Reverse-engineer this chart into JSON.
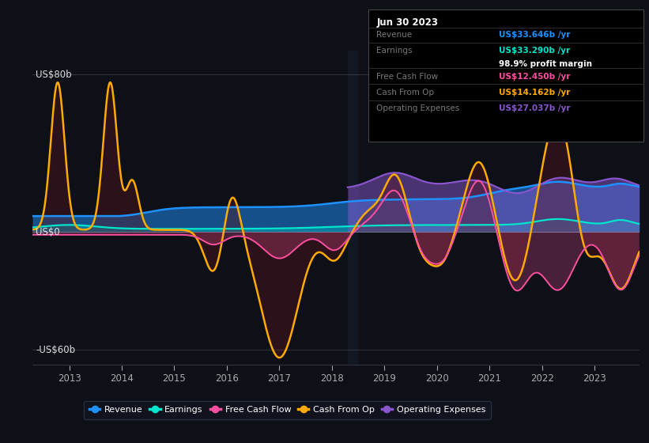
{
  "background_color": "#0d1117",
  "chart_bg": "#0d1117",
  "ylabel_top": "US$80b",
  "ylabel_mid": "US$0",
  "ylabel_bot": "-US$60b",
  "ylim": [
    -68,
    92
  ],
  "xlim": [
    2012.3,
    2023.85
  ],
  "xticks": [
    2013,
    2014,
    2015,
    2016,
    2017,
    2018,
    2019,
    2020,
    2021,
    2022,
    2023
  ],
  "colors": {
    "revenue": "#1e90ff",
    "earnings": "#00e5cc",
    "free_cash_flow": "#ff4fa0",
    "cash_from_op": "#ffaa00",
    "operating_expenses": "#8855cc"
  },
  "legend": [
    {
      "label": "Revenue",
      "color": "#1e90ff"
    },
    {
      "label": "Earnings",
      "color": "#00e5cc"
    },
    {
      "label": "Free Cash Flow",
      "color": "#ff4fa0"
    },
    {
      "label": "Cash From Op",
      "color": "#ffaa00"
    },
    {
      "label": "Operating Expenses",
      "color": "#8855cc"
    }
  ],
  "info_box": {
    "date": "Jun 30 2023",
    "revenue": "US$33.646b /yr",
    "earnings": "US$33.290b /yr",
    "profit_margin": "98.9% profit margin",
    "free_cash_flow": "US$12.450b /yr",
    "cash_from_op": "US$14.162b /yr",
    "operating_expenses": "US$27.037b /yr"
  }
}
